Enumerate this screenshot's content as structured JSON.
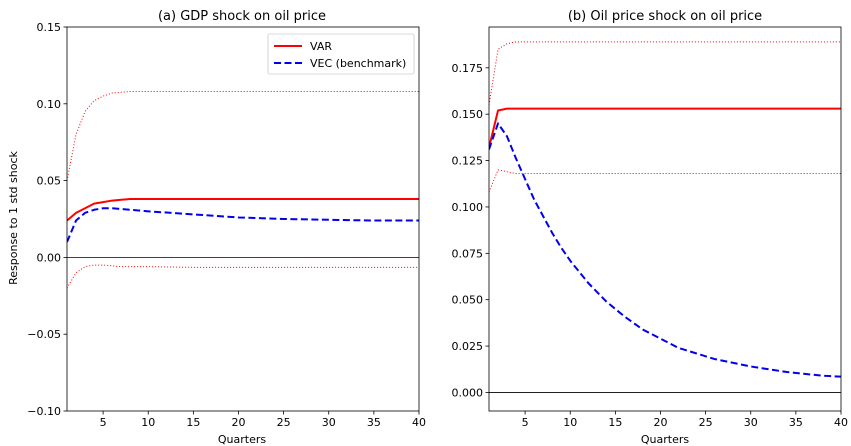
{
  "chart_data": [
    {
      "type": "line",
      "title": "(a) GDP shock on oil price",
      "xlabel": "Quarters",
      "ylabel": "Response to 1 std shock",
      "xlim": [
        1,
        40
      ],
      "ylim": [
        -0.1,
        0.15
      ],
      "xticks": [
        5,
        10,
        15,
        20,
        25,
        30,
        35,
        40
      ],
      "yticks": [
        -0.1,
        -0.05,
        0.0,
        0.05,
        0.1,
        0.15
      ],
      "ytick_labels": [
        "−0.10",
        "−0.05",
        "0.00",
        "0.05",
        "0.10",
        "0.15"
      ],
      "zero_line": true,
      "legend": {
        "position": "top-right"
      },
      "series": [
        {
          "name": "VAR",
          "color": "#ff0000",
          "style": "solid",
          "x": [
            1,
            2,
            3,
            4,
            5,
            6,
            7,
            8,
            10,
            15,
            20,
            25,
            30,
            35,
            40
          ],
          "y": [
            0.024,
            0.029,
            0.032,
            0.035,
            0.036,
            0.037,
            0.0375,
            0.038,
            0.038,
            0.038,
            0.038,
            0.038,
            0.038,
            0.038,
            0.038
          ]
        },
        {
          "name": "VEC (benchmark)",
          "color": "#0000ee",
          "style": "dashed",
          "x": [
            1,
            2,
            3,
            4,
            5,
            6,
            8,
            10,
            15,
            20,
            25,
            30,
            35,
            40
          ],
          "y": [
            0.01,
            0.024,
            0.029,
            0.031,
            0.032,
            0.032,
            0.031,
            0.03,
            0.028,
            0.026,
            0.025,
            0.0245,
            0.024,
            0.024
          ]
        },
        {
          "color": "#ff0000",
          "style": "dotted",
          "x": [
            1,
            2,
            3,
            4,
            5,
            6,
            7,
            8,
            10,
            15,
            20,
            25,
            30,
            35,
            40
          ],
          "y": [
            0.05,
            0.08,
            0.095,
            0.102,
            0.105,
            0.107,
            0.1075,
            0.108,
            0.108,
            0.108,
            0.108,
            0.108,
            0.108,
            0.108,
            0.108
          ]
        },
        {
          "color": "#ff0000",
          "style": "dotted",
          "x": [
            1,
            2,
            3,
            4,
            5,
            7,
            10,
            15,
            20,
            25,
            30,
            35,
            40
          ],
          "y": [
            -0.02,
            -0.01,
            -0.006,
            -0.005,
            -0.005,
            -0.006,
            -0.006,
            -0.0065,
            -0.0065,
            -0.0065,
            -0.0065,
            -0.0065,
            -0.0065
          ]
        }
      ]
    },
    {
      "type": "line",
      "title": "(b) Oil price shock on oil price",
      "xlabel": "Quarters",
      "ylabel": "",
      "xlim": [
        1,
        40
      ],
      "ylim": [
        -0.01,
        0.197
      ],
      "xticks": [
        5,
        10,
        15,
        20,
        25,
        30,
        35,
        40
      ],
      "yticks": [
        0.0,
        0.025,
        0.05,
        0.075,
        0.1,
        0.125,
        0.15,
        0.175
      ],
      "ytick_labels": [
        "0.000",
        "0.025",
        "0.050",
        "0.075",
        "0.100",
        "0.125",
        "0.150",
        "0.175"
      ],
      "zero_line": true,
      "series": [
        {
          "color": "#ff0000",
          "style": "solid",
          "x": [
            1,
            2,
            3,
            4,
            5,
            10,
            15,
            20,
            25,
            30,
            35,
            40
          ],
          "y": [
            0.132,
            0.152,
            0.153,
            0.153,
            0.153,
            0.153,
            0.153,
            0.153,
            0.153,
            0.153,
            0.153,
            0.153
          ]
        },
        {
          "color": "#0000ee",
          "style": "dashed",
          "x": [
            1,
            2,
            3,
            4,
            5,
            6,
            7,
            8,
            9,
            10,
            12,
            14,
            16,
            18,
            20,
            22,
            24,
            26,
            28,
            30,
            32,
            34,
            36,
            38,
            40
          ],
          "y": [
            0.131,
            0.145,
            0.138,
            0.126,
            0.115,
            0.104,
            0.095,
            0.086,
            0.078,
            0.071,
            0.059,
            0.049,
            0.041,
            0.034,
            0.029,
            0.024,
            0.021,
            0.018,
            0.016,
            0.014,
            0.0125,
            0.011,
            0.01,
            0.009,
            0.0085
          ]
        },
        {
          "color": "#ff0000",
          "style": "dotted",
          "x": [
            1,
            2,
            3,
            4,
            5,
            10,
            15,
            20,
            25,
            30,
            35,
            40
          ],
          "y": [
            0.155,
            0.185,
            0.188,
            0.189,
            0.189,
            0.189,
            0.189,
            0.189,
            0.189,
            0.189,
            0.189,
            0.189
          ]
        },
        {
          "color": "#ff0000",
          "style": "dotted",
          "x": [
            1,
            2,
            3,
            4,
            5,
            10,
            15,
            20,
            25,
            30,
            35,
            40
          ],
          "y": [
            0.108,
            0.12,
            0.119,
            0.118,
            0.118,
            0.118,
            0.118,
            0.118,
            0.118,
            0.118,
            0.118,
            0.118
          ]
        }
      ]
    }
  ]
}
